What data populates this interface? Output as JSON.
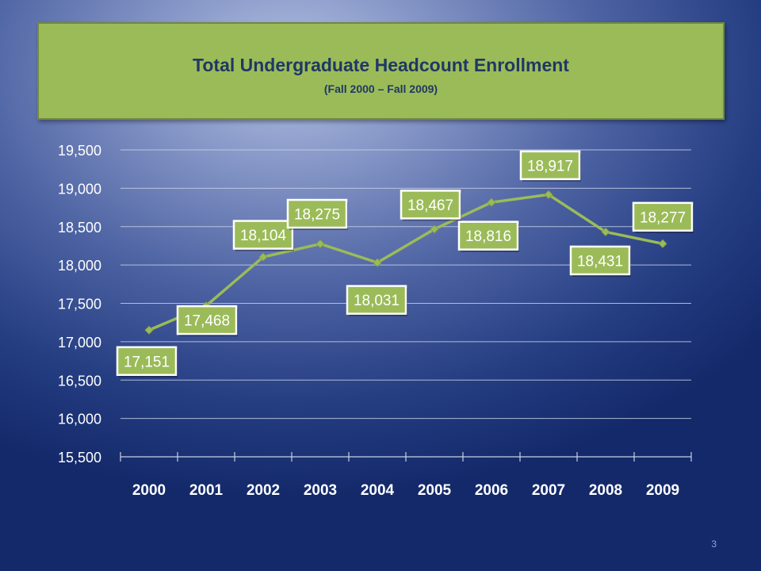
{
  "slide": {
    "title": "Total Undergraduate Headcount Enrollment",
    "subtitle": "(Fall 2000 – Fall 2009)",
    "page_number": "3"
  },
  "colors": {
    "line": "#9bbb59",
    "label_fill": "#9bbb59",
    "label_border": "#ffffff",
    "axis_text": "#ffffff",
    "gridline": "#c7d0e6",
    "title_box": "#9bbb59",
    "title_text": "#1f3864"
  },
  "chart_data": {
    "type": "line",
    "categories": [
      "2000",
      "2001",
      "2002",
      "2003",
      "2004",
      "2005",
      "2006",
      "2007",
      "2008",
      "2009"
    ],
    "series": [
      {
        "values": [
          17151,
          17468,
          18104,
          18275,
          18031,
          18467,
          18816,
          18917,
          18431,
          18277
        ],
        "data_labels": [
          "17,151",
          "17,468",
          "18,104",
          "18,275",
          "18,031",
          "18,467",
          "18,816",
          "18,917",
          "18,431",
          "18,277"
        ]
      }
    ],
    "ylim": [
      15500,
      19500
    ],
    "y_ticks": [
      15500,
      16000,
      16500,
      17000,
      17500,
      18000,
      18500,
      19000,
      19500
    ],
    "y_tick_labels": [
      "15,500",
      "16,000",
      "16,500",
      "17,000",
      "17,500",
      "18,000",
      "18,500",
      "19,000",
      "19,500"
    ],
    "grid": true,
    "marker": "diamond",
    "legend": "none"
  }
}
